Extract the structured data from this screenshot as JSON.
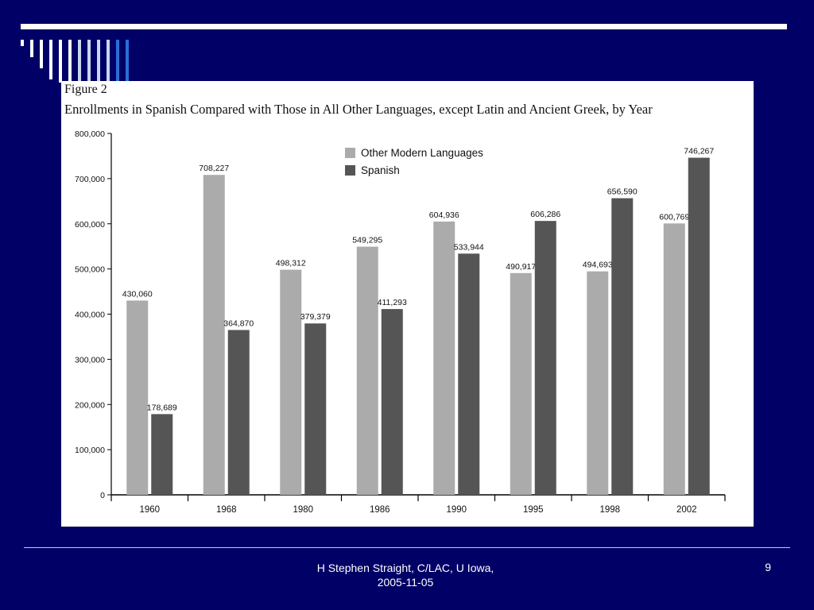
{
  "figure_label": "Figure 2",
  "chart_data": {
    "type": "bar",
    "title": "Enrollments in Spanish Compared with Those in All Other Languages, except Latin and Ancient Greek, by Year",
    "categories": [
      "1960",
      "1968",
      "1980",
      "1986",
      "1990",
      "1995",
      "1998",
      "2002"
    ],
    "series": [
      {
        "name": "Other Modern Languages",
        "color": "#ababab",
        "values": [
          430060,
          708227,
          498312,
          549295,
          604936,
          490917,
          494693,
          600769
        ],
        "labels": [
          "430,060",
          "708,227",
          "498,312",
          "549,295",
          "604,936",
          "490,917",
          "494,693",
          "600,769"
        ]
      },
      {
        "name": "Spanish",
        "color": "#555555",
        "values": [
          178689,
          364870,
          379379,
          411293,
          533944,
          606286,
          656590,
          746267
        ],
        "labels": [
          "178,689",
          "364,870",
          "379,379",
          "411,293",
          "533,944",
          "606,286",
          "656,590",
          "746,267"
        ]
      }
    ],
    "ylim": [
      0,
      800000
    ],
    "yticks": [
      0,
      100000,
      200000,
      300000,
      400000,
      500000,
      600000,
      700000,
      800000
    ],
    "ytick_labels": [
      "0",
      "100,000",
      "200,000",
      "300,000",
      "400,000",
      "500,000",
      "600,000",
      "700,000",
      "800,000"
    ],
    "legend": "top-center"
  },
  "footer": {
    "author_line1": "H Stephen Straight, C/LAC, U Iowa,",
    "author_line2": "2005-11-05",
    "page_number": "9"
  },
  "theme": {
    "background": "#000066",
    "accent_stripes": [
      "#ffffff",
      "#c9d8f0",
      "#2a6fd6"
    ]
  }
}
